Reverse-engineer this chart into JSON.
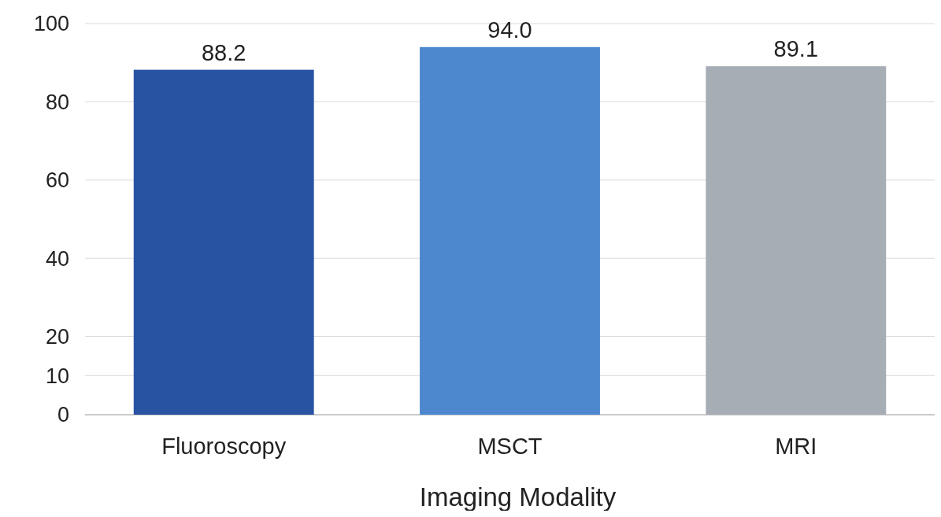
{
  "chart_data": {
    "type": "bar",
    "xlabel": "Imaging Modality",
    "categories": [
      "Fluoroscopy",
      "MSCT",
      "MRI"
    ],
    "values": [
      88.2,
      94.0,
      89.1
    ],
    "value_labels": [
      "88.2",
      "94.0",
      "89.1"
    ],
    "colors": [
      "#2853a3",
      "#4d88cf",
      "#a6adb5"
    ],
    "ylim": [
      0,
      100
    ],
    "yticks": [
      0,
      10,
      20,
      40,
      60,
      80,
      100
    ],
    "grid": "y"
  }
}
